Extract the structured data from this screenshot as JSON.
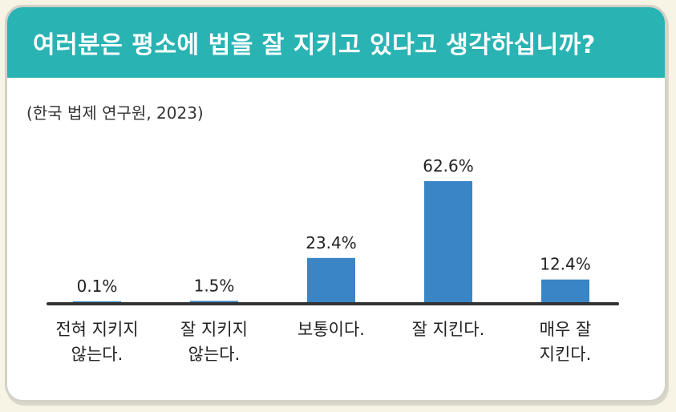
{
  "title": "여러분은 평소에 법을 잘 지키고 있다고 생각하십니까?",
  "source": "(한국 법제 연구원, 2023)",
  "colors": {
    "header": "#2ab3b3",
    "bar": "#3a85c6",
    "baseline": "#333333"
  },
  "chart_data": {
    "type": "bar",
    "title": "여러분은 평소에 법을 잘 지키고 있다고 생각하십니까?",
    "categories": [
      [
        "전혀 지키지",
        "않는다."
      ],
      [
        "잘 지키지",
        "않는다."
      ],
      [
        "보통이다."
      ],
      [
        "잘 지킨다."
      ],
      [
        "매우 잘",
        "지킨다."
      ]
    ],
    "values": [
      0.1,
      1.5,
      23.4,
      62.6,
      12.4
    ],
    "value_labels": [
      "0.1%",
      "1.5%",
      "23.4%",
      "62.6%",
      "12.4%"
    ],
    "unit": "%",
    "ylim": [
      0,
      62.6
    ],
    "grid": false,
    "legend": "none"
  }
}
